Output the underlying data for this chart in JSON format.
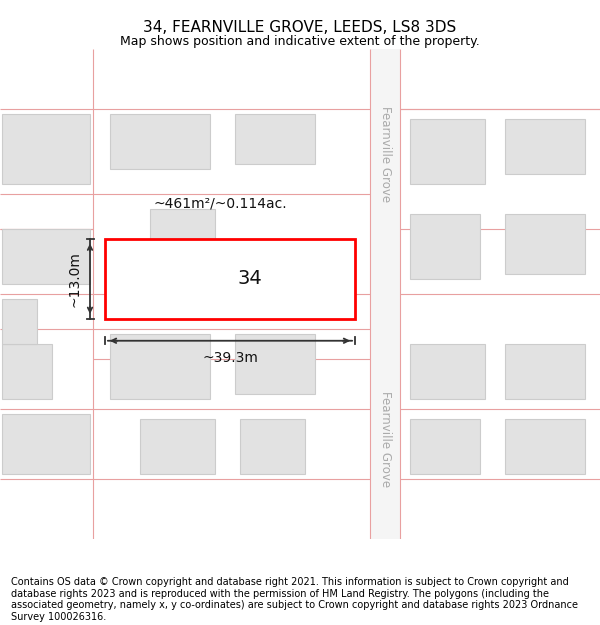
{
  "title": "34, FEARNVILLE GROVE, LEEDS, LS8 3DS",
  "subtitle": "Map shows position and indicative extent of the property.",
  "footer": "Contains OS data © Crown copyright and database right 2021. This information is subject to Crown copyright and database rights 2023 and is reproduced with the permission of HM Land Registry. The polygons (including the associated geometry, namely x, y co-ordinates) are subject to Crown copyright and database rights 2023 Ordnance Survey 100026316.",
  "map_bg": "#f9f9f9",
  "road_line_color": "#e8a0a0",
  "building_fill": "#e2e2e2",
  "building_edge": "#cccccc",
  "highlight_fill": "#ffffff",
  "highlight_edge": "#ff0000",
  "highlight_lw": 2.0,
  "street_label": "Fearnville Grove",
  "area_label": "~461m²/~0.114ac.",
  "width_label": "~39.3m",
  "height_label": "~13.0m",
  "number_label": "34",
  "title_fontsize": 11,
  "subtitle_fontsize": 9,
  "footer_fontsize": 7,
  "label_fontsize": 10,
  "number_fontsize": 14,
  "dim_color": "#333333",
  "street_label_color": "#aaaaaa"
}
